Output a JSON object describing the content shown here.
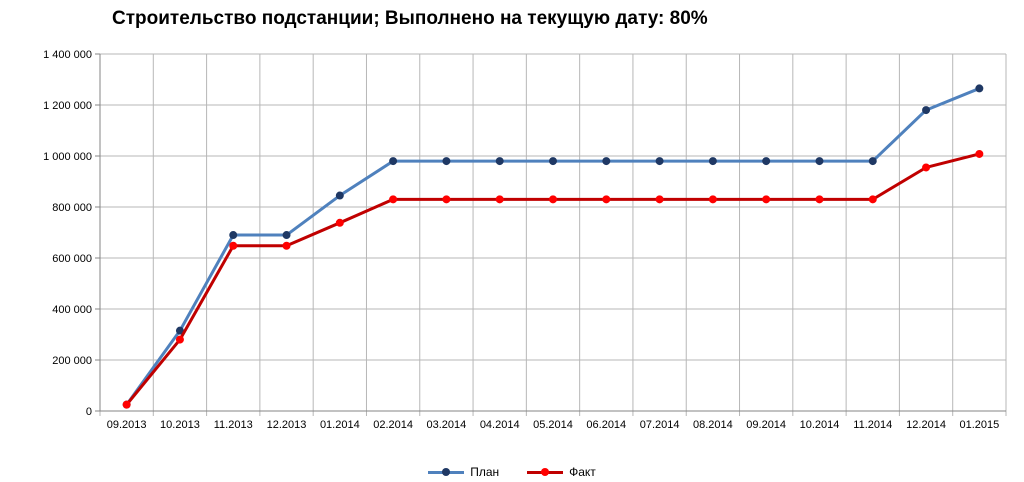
{
  "chart_data": {
    "type": "line",
    "title": "Строительство подстанции; Выполнено на текущую дату: 80%",
    "xlabel": "",
    "ylabel": "",
    "categories": [
      "09.2013",
      "10.2013",
      "11.2013",
      "12.2013",
      "01.2014",
      "02.2014",
      "03.2014",
      "04.2014",
      "05.2014",
      "06.2014",
      "07.2014",
      "08.2014",
      "09.2014",
      "10.2014",
      "11.2014",
      "12.2014",
      "01.2015"
    ],
    "ylim": [
      0,
      1400000
    ],
    "yticks": [
      0,
      200000,
      400000,
      600000,
      800000,
      1000000,
      1200000,
      1400000
    ],
    "ytick_labels": [
      "0",
      "200 000",
      "400 000",
      "600 000",
      "800 000",
      "1 000 000",
      "1 200 000",
      "1 400 000"
    ],
    "grid": true,
    "legend_position": "bottom",
    "series": [
      {
        "name": "План",
        "color": "#4f81bd",
        "marker_color": "#1f3864",
        "values": [
          25000,
          315000,
          690000,
          690000,
          845000,
          980000,
          980000,
          980000,
          980000,
          980000,
          980000,
          980000,
          980000,
          980000,
          980000,
          1180000,
          1265000
        ]
      },
      {
        "name": "Факт",
        "color": "#c00000",
        "marker_color": "#ff0000",
        "values": [
          25000,
          280000,
          648000,
          648000,
          738000,
          830000,
          830000,
          830000,
          830000,
          830000,
          830000,
          830000,
          830000,
          830000,
          830000,
          955000,
          1008000
        ]
      }
    ]
  }
}
